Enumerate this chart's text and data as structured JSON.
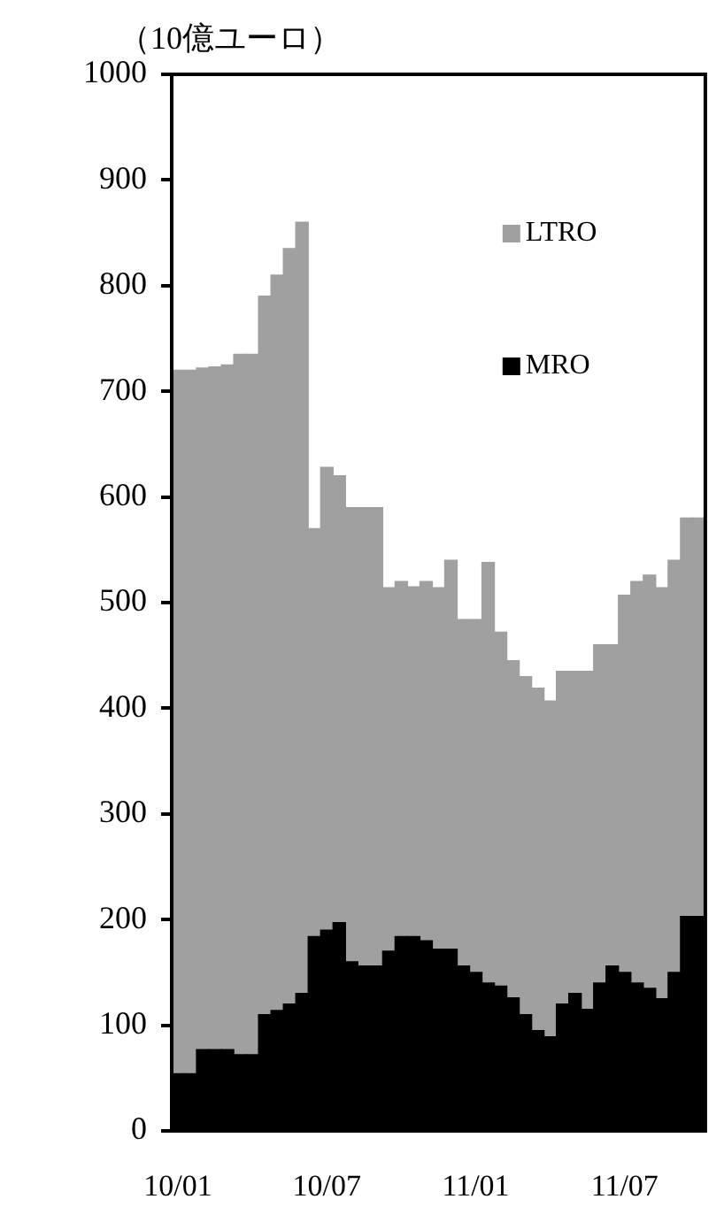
{
  "chart_data": {
    "type": "bar",
    "stacked": true,
    "ylabel": "（10億ユーロ）",
    "legend": "top right",
    "categories": [
      "10/01",
      null,
      null,
      null,
      null,
      null,
      null,
      null,
      null,
      null,
      null,
      null,
      "10/07",
      null,
      null,
      null,
      null,
      null,
      null,
      null,
      null,
      null,
      null,
      null,
      "11/01",
      null,
      null,
      null,
      null,
      null,
      null,
      null,
      null,
      null,
      null,
      null,
      "11/07",
      null,
      null,
      null,
      null,
      null,
      null
    ],
    "series": [
      {
        "name": "MRO",
        "color": "#000000",
        "values": [
          54,
          54,
          77,
          77,
          77,
          72,
          72,
          110,
          114,
          120,
          130,
          184,
          190,
          197,
          160,
          156,
          156,
          170,
          184,
          184,
          180,
          172,
          172,
          156,
          150,
          140,
          137,
          126,
          110,
          95,
          89,
          120,
          130,
          115,
          140,
          156,
          150,
          140,
          135,
          125,
          150,
          203,
          203
        ]
      },
      {
        "name": "LTRO",
        "color": "#a0a0a0",
        "values": [
          666,
          666,
          645,
          646,
          648,
          663,
          663,
          680,
          696,
          715,
          730,
          386,
          438,
          423,
          430,
          434,
          434,
          344,
          336,
          331,
          340,
          342,
          368,
          328,
          334,
          398,
          335,
          319,
          320,
          324,
          318,
          315,
          305,
          320,
          320,
          304,
          357,
          380,
          391,
          389,
          390,
          377,
          377
        ]
      }
    ],
    "ylim": [
      0,
      1000
    ],
    "yticks": [
      0,
      100,
      200,
      300,
      400,
      500,
      600,
      700,
      800,
      900,
      1000
    ]
  }
}
